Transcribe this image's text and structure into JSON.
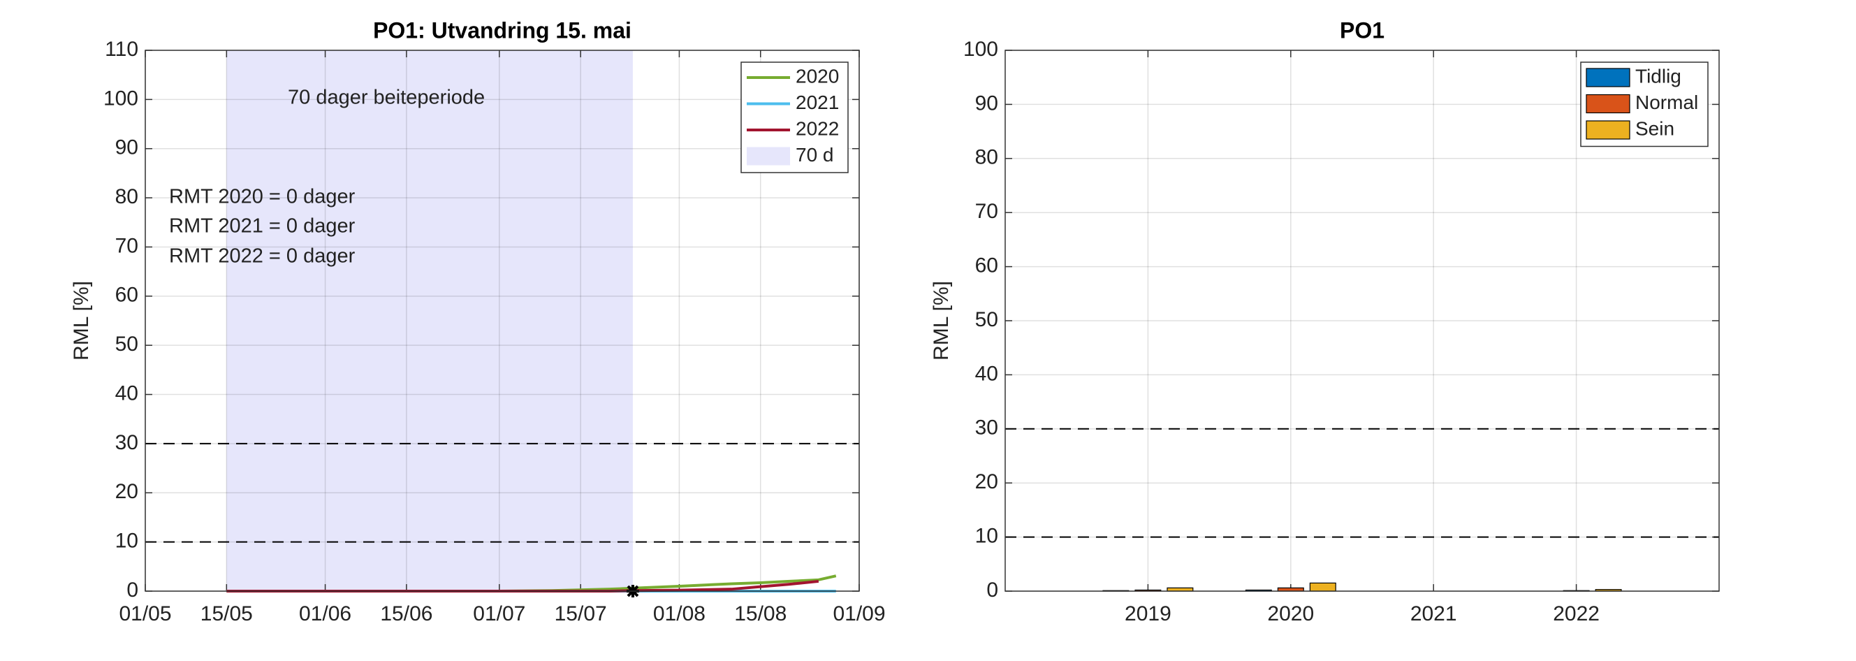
{
  "chart_data": [
    {
      "type": "line",
      "title": "PO1: Utvandring 15. mai",
      "ylabel": "RML [%]",
      "x": [
        "15/05",
        "01/06",
        "15/06",
        "01/07",
        "10/07",
        "20/07",
        "24/07",
        "01/08",
        "10/08",
        "15/08",
        "20/08",
        "25/08",
        "28/08"
      ],
      "series": [
        {
          "name": "2020",
          "color": "#77ac30",
          "values": [
            0,
            0,
            0,
            0,
            0.1,
            0.4,
            0.6,
            1,
            1.5,
            1.7,
            2,
            2.3,
            3.1
          ]
        },
        {
          "name": "2021",
          "color": "#4dbeee",
          "values": [
            0,
            0,
            0,
            0,
            0,
            0,
            0,
            0,
            0,
            0,
            0,
            0,
            0
          ]
        },
        {
          "name": "2022",
          "color": "#a2142f",
          "values": [
            0,
            0,
            0,
            0,
            0,
            0,
            0.1,
            0.2,
            0.4,
            0.9,
            1.4,
            2,
            null
          ]
        }
      ],
      "span": {
        "name": "70 d",
        "start": "15/05",
        "end": "24/07",
        "color": "#e6e6fb"
      },
      "marker": {
        "x": "24/07",
        "y": 0
      },
      "hlines": [
        10,
        30
      ],
      "annotations": [
        "70 dager beiteperiode",
        "RMT 2020 = 0 dager",
        "RMT 2021 = 0 dager",
        "RMT 2022 = 0 dager"
      ],
      "xlim": [
        "01/05",
        "01/09"
      ],
      "xticks": [
        "01/05",
        "15/05",
        "01/06",
        "15/06",
        "01/07",
        "15/07",
        "01/08",
        "15/08",
        "01/09"
      ],
      "ylim": [
        0,
        110
      ],
      "yticks": [
        0,
        10,
        20,
        30,
        40,
        50,
        60,
        70,
        80,
        90,
        100,
        110
      ],
      "grid": true,
      "legend": "northeast"
    },
    {
      "type": "bar",
      "title": "PO1",
      "ylabel": "RML [%]",
      "x": [
        2019,
        2020,
        2021,
        2022
      ],
      "series": [
        {
          "name": "Tidlig",
          "color": "#0072bd",
          "values": [
            0.1,
            0.2,
            0,
            0
          ]
        },
        {
          "name": "Normal",
          "color": "#d95319",
          "values": [
            0.2,
            0.6,
            0,
            0.1
          ]
        },
        {
          "name": "Sein",
          "color": "#edb120",
          "values": [
            0.6,
            1.5,
            0,
            0.3
          ]
        }
      ],
      "hlines": [
        10,
        30
      ],
      "xlim": [
        2018,
        2023
      ],
      "xticks": [
        2019,
        2020,
        2021,
        2022
      ],
      "ylim": [
        0,
        100
      ],
      "yticks": [
        0,
        10,
        20,
        30,
        40,
        50,
        60,
        70,
        80,
        90,
        100
      ],
      "grid": true,
      "legend": "northeast"
    }
  ]
}
